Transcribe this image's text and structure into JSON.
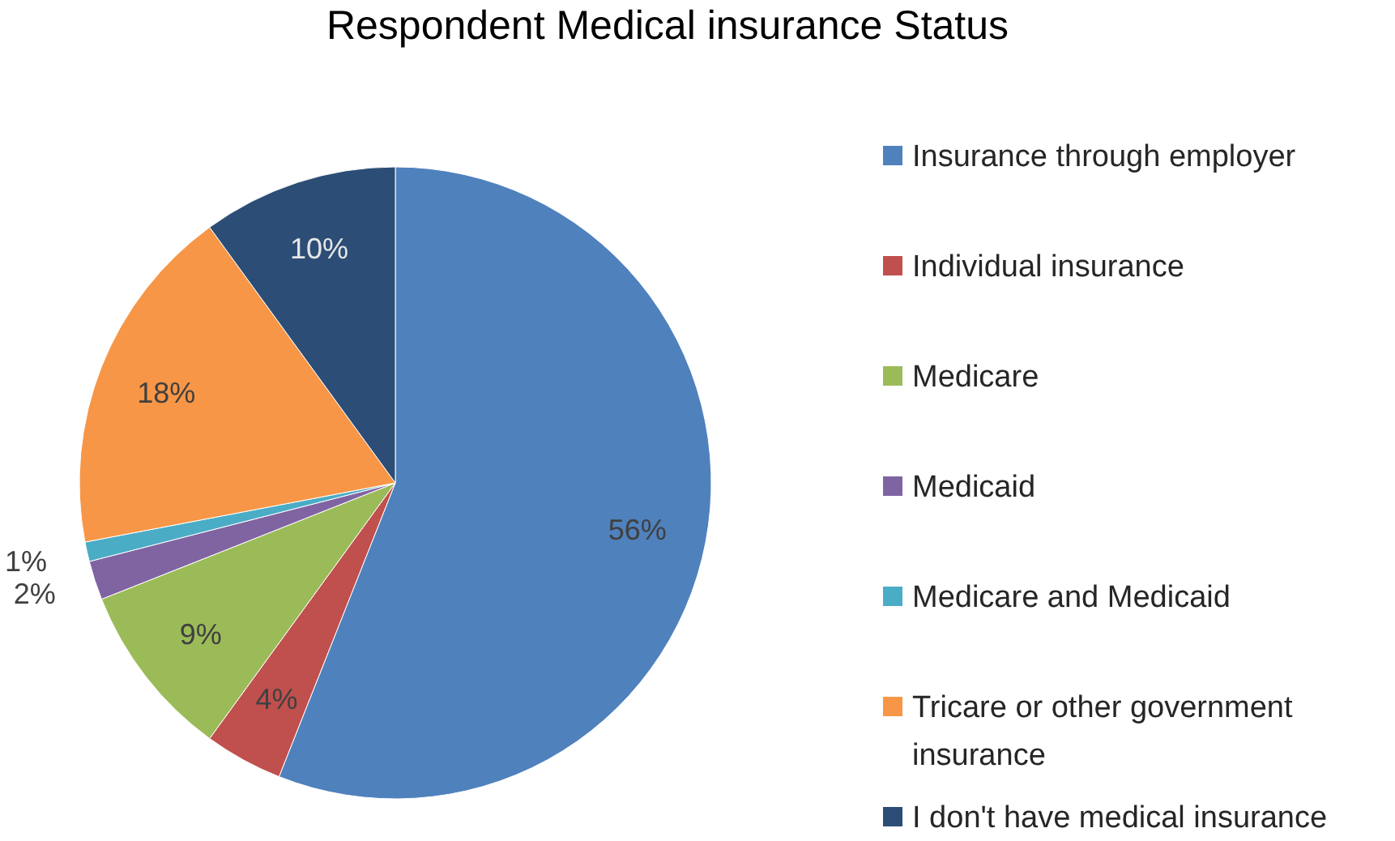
{
  "chart_data": {
    "type": "pie",
    "title": "Respondent Medical insurance Status",
    "categories": [
      "Insurance through employer",
      "Individual insurance",
      "Medicare",
      "Medicaid",
      "Medicare and Medicaid",
      "Tricare or other government insurance",
      "I don't have medical insurance"
    ],
    "values": [
      56,
      4,
      9,
      2,
      1,
      18,
      10
    ],
    "value_labels": [
      "56%",
      "4%",
      "9%",
      "2%",
      "1%",
      "18%",
      "10%"
    ],
    "colors": [
      "#4f81bd",
      "#c0504d",
      "#9bbb59",
      "#8064a2",
      "#4bacc6",
      "#f79646",
      "#2c4d75"
    ],
    "legend": "right"
  }
}
